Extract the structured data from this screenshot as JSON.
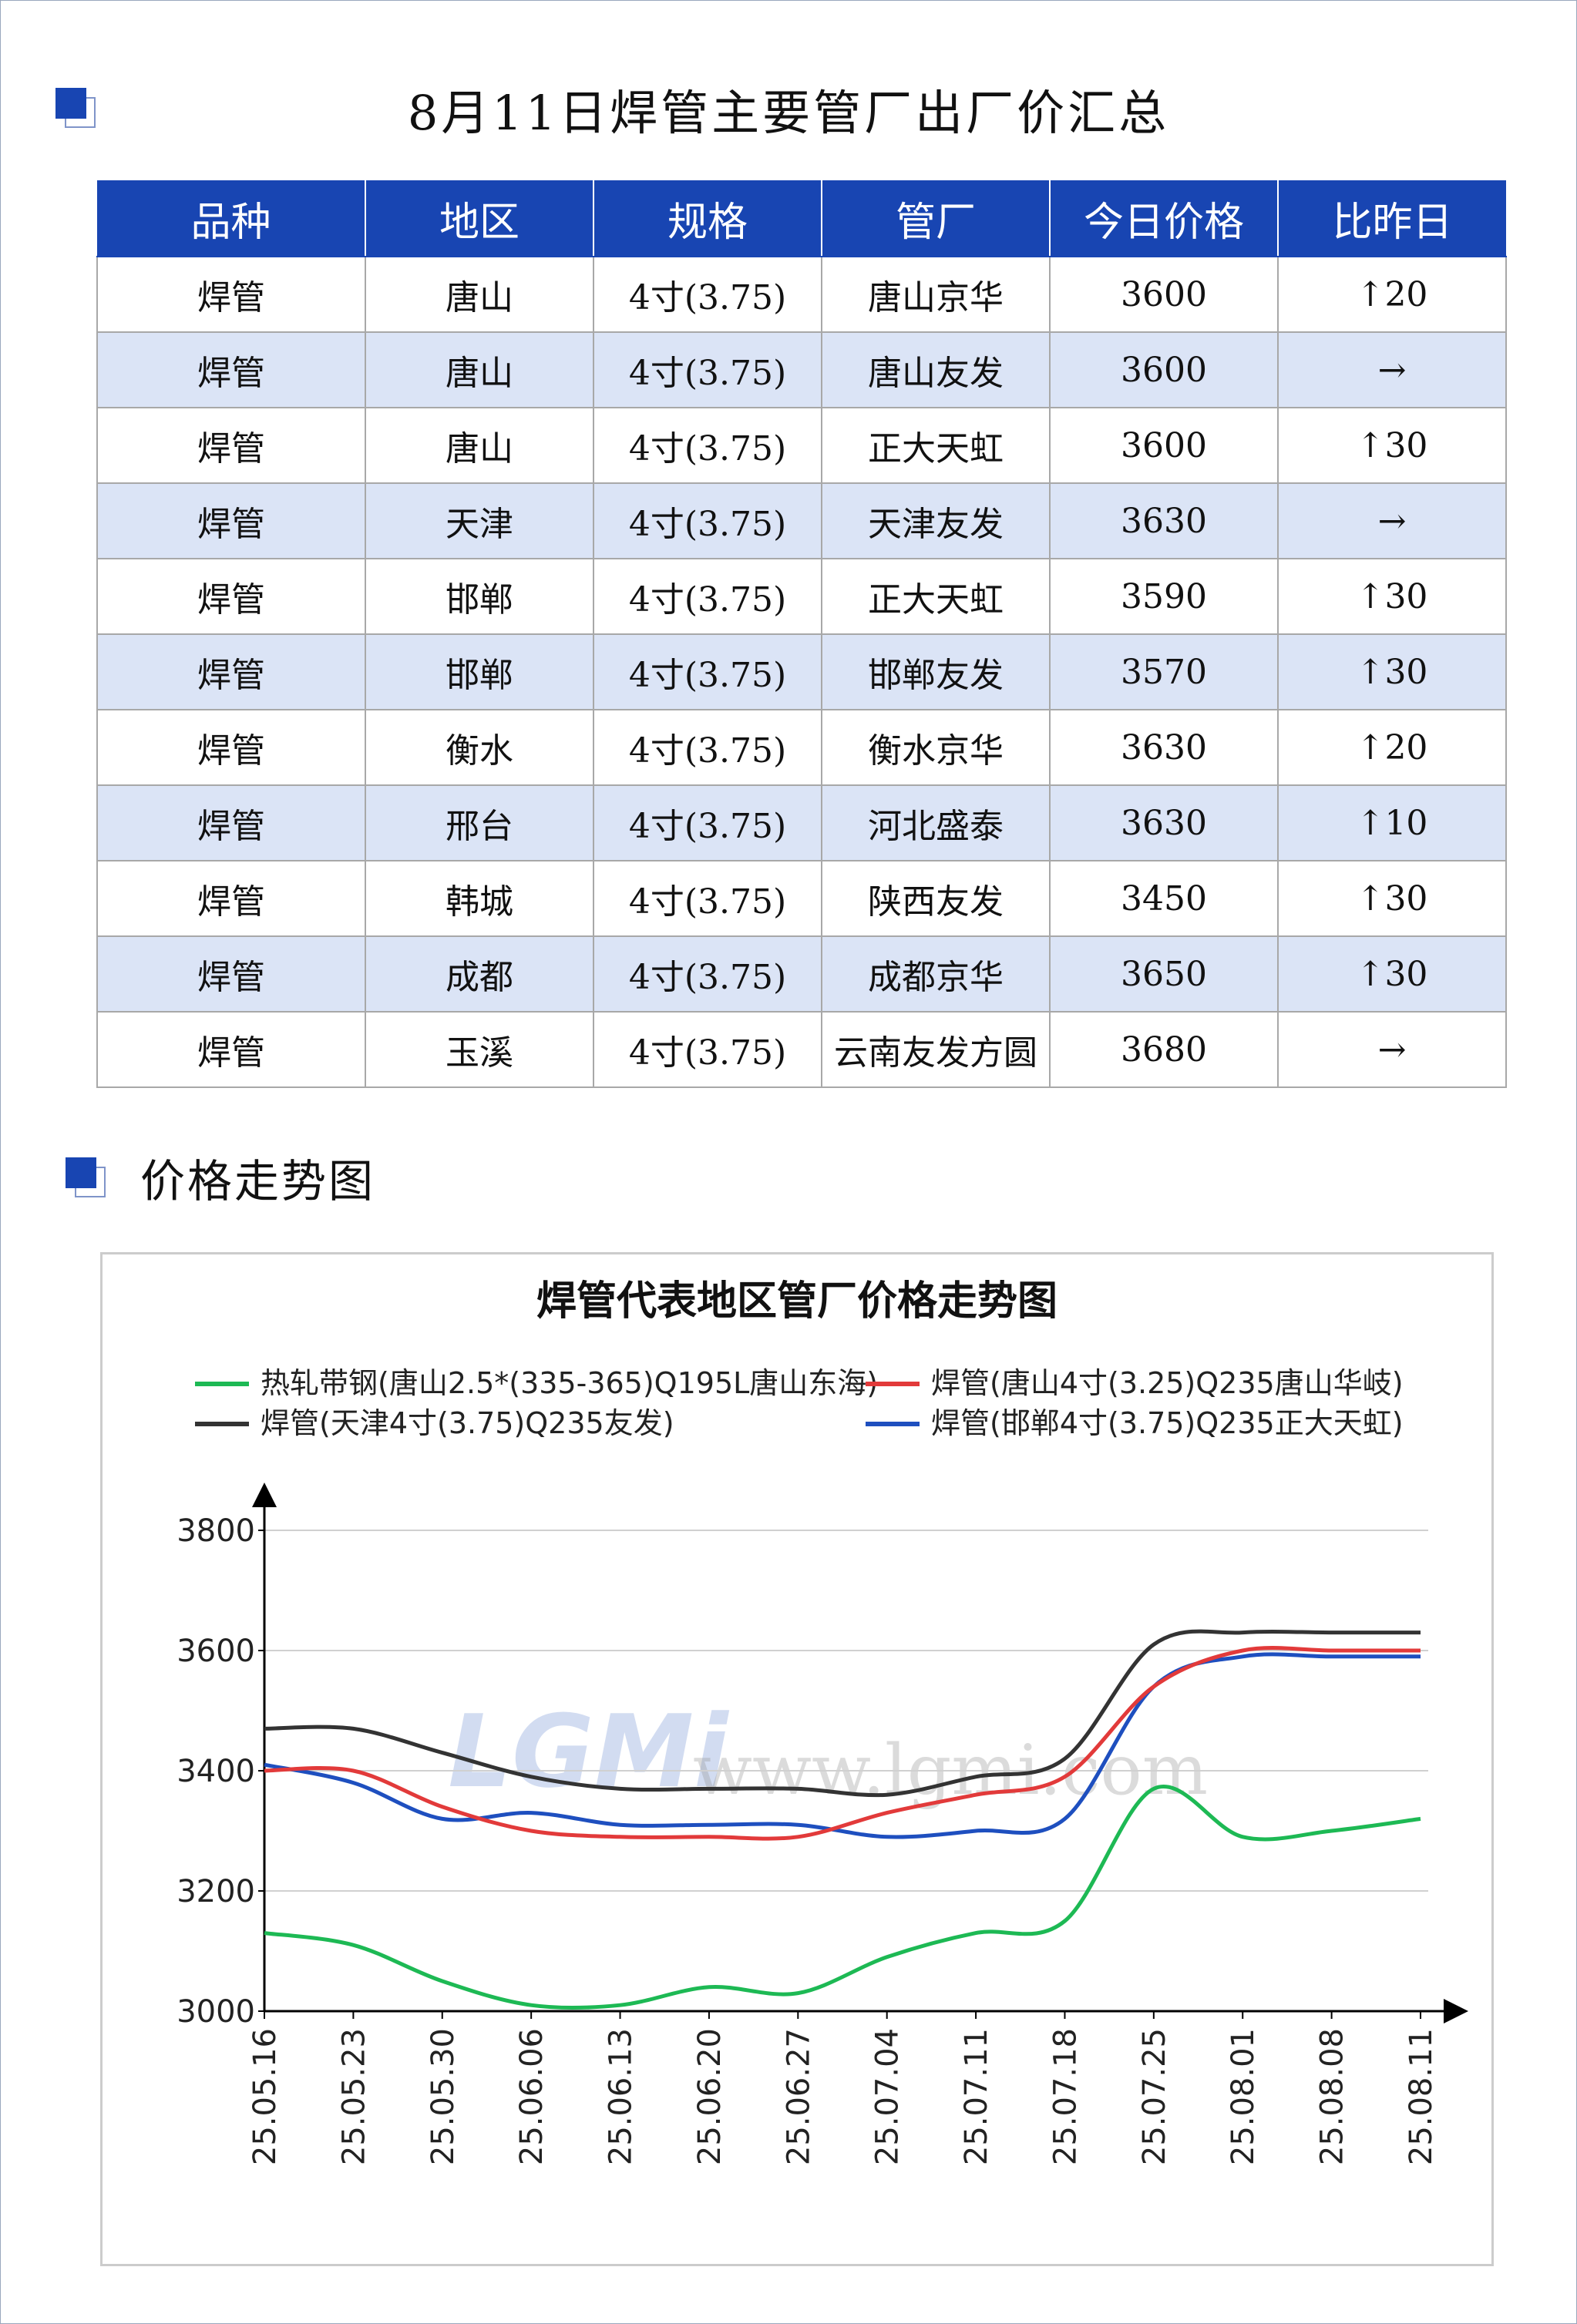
{
  "title": "8月11日焊管主要管厂出厂价汇总",
  "table": {
    "headers": [
      "品种",
      "地区",
      "规格",
      "管厂",
      "今日价格",
      "比昨日"
    ],
    "rows": [
      {
        "variety": "焊管",
        "region": "唐山",
        "spec": "4寸(3.75)",
        "mill": "唐山京华",
        "price": "3600",
        "dir": "up",
        "arrow": "↑",
        "change": "20"
      },
      {
        "variety": "焊管",
        "region": "唐山",
        "spec": "4寸(3.75)",
        "mill": "唐山友发",
        "price": "3600",
        "dir": "flat",
        "arrow": "→",
        "change": ""
      },
      {
        "variety": "焊管",
        "region": "唐山",
        "spec": "4寸(3.75)",
        "mill": "正大天虹",
        "price": "3600",
        "dir": "up",
        "arrow": "↑",
        "change": "30"
      },
      {
        "variety": "焊管",
        "region": "天津",
        "spec": "4寸(3.75)",
        "mill": "天津友发",
        "price": "3630",
        "dir": "flat",
        "arrow": "→",
        "change": ""
      },
      {
        "variety": "焊管",
        "region": "邯郸",
        "spec": "4寸(3.75)",
        "mill": "正大天虹",
        "price": "3590",
        "dir": "up",
        "arrow": "↑",
        "change": "30"
      },
      {
        "variety": "焊管",
        "region": "邯郸",
        "spec": "4寸(3.75)",
        "mill": "邯郸友发",
        "price": "3570",
        "dir": "up",
        "arrow": "↑",
        "change": "30"
      },
      {
        "variety": "焊管",
        "region": "衡水",
        "spec": "4寸(3.75)",
        "mill": "衡水京华",
        "price": "3630",
        "dir": "up",
        "arrow": "↑",
        "change": "20"
      },
      {
        "variety": "焊管",
        "region": "邢台",
        "spec": "4寸(3.75)",
        "mill": "河北盛泰",
        "price": "3630",
        "dir": "up",
        "arrow": "↑",
        "change": "10"
      },
      {
        "variety": "焊管",
        "region": "韩城",
        "spec": "4寸(3.75)",
        "mill": "陕西友发",
        "price": "3450",
        "dir": "up",
        "arrow": "↑",
        "change": "30"
      },
      {
        "variety": "焊管",
        "region": "成都",
        "spec": "4寸(3.75)",
        "mill": "成都京华",
        "price": "3650",
        "dir": "up",
        "arrow": "↑",
        "change": "30"
      },
      {
        "variety": "焊管",
        "region": "玉溪",
        "spec": "4寸(3.75)",
        "mill": "云南友发方圆",
        "price": "3680",
        "dir": "flat",
        "arrow": "→",
        "change": ""
      }
    ]
  },
  "section_heading": "价格走势图",
  "colors": {
    "accent": "#1845b2",
    "row_alt": "#dbe4f6",
    "up": "#e60012"
  },
  "chart_data": {
    "type": "line",
    "title": "焊管代表地区管厂价格走势图",
    "watermark": {
      "logo": "LGMi",
      "text": "www.lgmi.com"
    },
    "x": [
      "25.05.16",
      "25.05.23",
      "25.05.30",
      "25.06.06",
      "25.06.13",
      "25.06.20",
      "25.06.27",
      "25.07.04",
      "25.07.11",
      "25.07.18",
      "25.07.25",
      "25.08.01",
      "25.08.08",
      "25.08.11"
    ],
    "ylim": [
      3000,
      3800
    ],
    "yticks": [
      3000,
      3200,
      3400,
      3600,
      3800
    ],
    "grid": true,
    "legend_position": "top",
    "series": [
      {
        "name": "热轧带钢(唐山2.5*(335-365)Q195L唐山东海)",
        "color": "#1db954",
        "values": [
          3130,
          3110,
          3050,
          3010,
          3010,
          3040,
          3030,
          3090,
          3130,
          3150,
          3370,
          3290,
          3300,
          3320
        ]
      },
      {
        "name": "焊管(唐山4寸(3.25)Q235唐山华岐)",
        "color": "#e23a3a",
        "values": [
          3400,
          3400,
          3340,
          3300,
          3290,
          3290,
          3290,
          3330,
          3360,
          3390,
          3540,
          3600,
          3600,
          3600
        ]
      },
      {
        "name": "焊管(天津4寸(3.75)Q235友发)",
        "color": "#333333",
        "values": [
          3470,
          3470,
          3430,
          3390,
          3370,
          3370,
          3370,
          3360,
          3390,
          3420,
          3610,
          3630,
          3630,
          3630
        ]
      },
      {
        "name": "焊管(邯郸4寸(3.75)Q235正大天虹)",
        "color": "#1e4fbf",
        "values": [
          3410,
          3380,
          3320,
          3330,
          3310,
          3310,
          3310,
          3290,
          3300,
          3320,
          3540,
          3590,
          3590,
          3590
        ]
      }
    ]
  }
}
